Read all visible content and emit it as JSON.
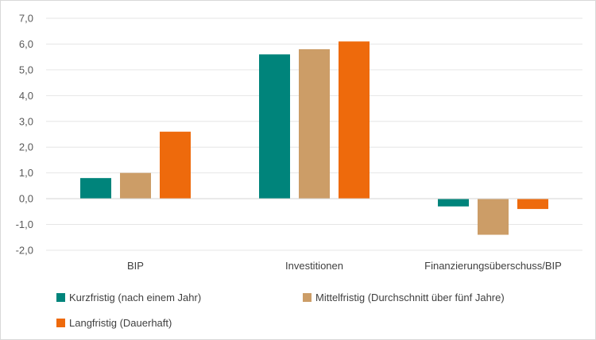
{
  "chart_data": {
    "type": "bar",
    "categories": [
      "BIP",
      "Investitionen",
      "Finanzierungsüberschuss/BIP"
    ],
    "series": [
      {
        "name": "Kurzfristig (nach einem Jahr)",
        "color": "#00847b",
        "values": [
          0.8,
          5.6,
          -0.3
        ]
      },
      {
        "name": "Mittelfristig (Durchschnitt über fünf Jahre)",
        "color": "#cc9d67",
        "values": [
          1.0,
          5.8,
          -1.4
        ]
      },
      {
        "name": "Langfristig (Dauerhaft)",
        "color": "#ee6a0c",
        "values": [
          2.6,
          6.1,
          -0.4
        ]
      }
    ],
    "yticks": [
      "7,0",
      "6,0",
      "5,0",
      "4,0",
      "3,0",
      "2,0",
      "1,0",
      "0,0",
      "-1,0",
      "-2,0"
    ],
    "ylim": [
      -2,
      7
    ],
    "grid": true,
    "legend": "bottom"
  }
}
